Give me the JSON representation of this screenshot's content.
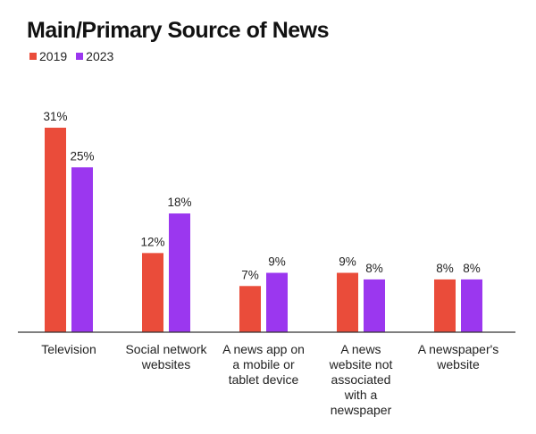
{
  "colors": {
    "2019": "#ea4c3a",
    "2023": "#9b37ef"
  },
  "chart_data": {
    "type": "bar",
    "title": "Main/Primary Source of News",
    "categories": [
      [
        "Television"
      ],
      [
        "Social network",
        "websites"
      ],
      [
        "A news app on",
        "a mobile or",
        "tablet device"
      ],
      [
        "A news",
        "website not",
        "associated",
        "with a",
        "newspaper"
      ],
      [
        "A newspaper's",
        "website"
      ]
    ],
    "series": [
      {
        "name": "2019",
        "color": "#ea4c3a",
        "values": [
          31,
          12,
          7,
          9,
          8
        ],
        "labels": [
          "31%",
          "12%",
          "7%",
          "9%",
          "8%"
        ]
      },
      {
        "name": "2023",
        "color": "#9b37ef",
        "values": [
          25,
          18,
          9,
          8,
          8
        ],
        "labels": [
          "25%",
          "18%",
          "9%",
          "8%",
          "8%"
        ]
      }
    ],
    "ylim": [
      0,
      31
    ],
    "legend": "top-left",
    "grid": false
  }
}
